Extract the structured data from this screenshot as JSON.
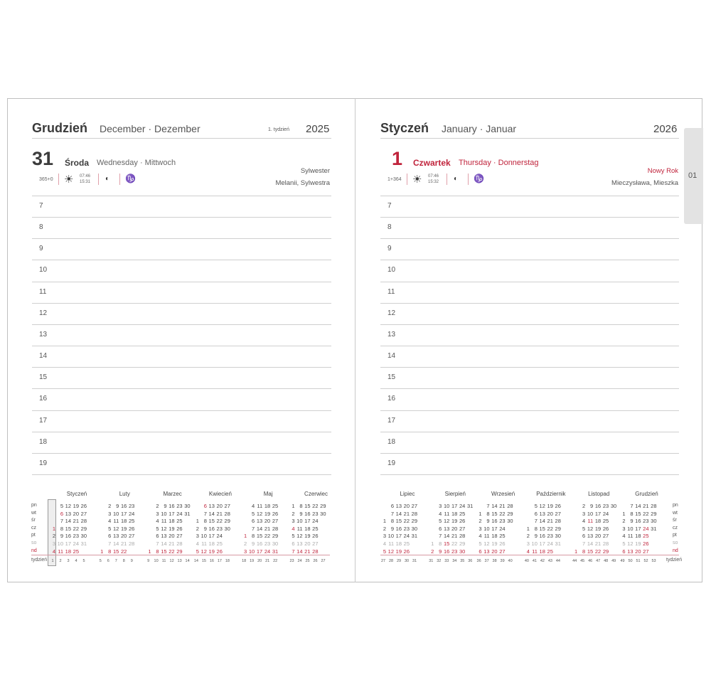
{
  "left": {
    "month": "Grudzień",
    "month_sub": "December · Dezember",
    "week": "1. tydzień",
    "year": "2025",
    "day": "31",
    "day_name": "Środa",
    "day_sub": "Wednesday · Mittwoch",
    "day_count": "365+0",
    "sunrise": "07:46",
    "sunset": "15:31",
    "holiday": "Sylwester",
    "namedays": "Melanii, Sylwestra",
    "day_red": false
  },
  "right": {
    "month": "Styczeń",
    "month_sub": "January · Januar",
    "year": "2026",
    "day": "1",
    "day_name": "Czwartek",
    "day_sub": "Thursday · Donnerstag",
    "day_count": "1+364",
    "sunrise": "07:46",
    "sunset": "15:32",
    "holiday": "Nowy Rok",
    "namedays": "Mieczysława, Mieszka",
    "day_red": true
  },
  "tab_label": "01",
  "hours": [
    "7",
    "8",
    "9",
    "10",
    "11",
    "12",
    "13",
    "14",
    "15",
    "16",
    "17",
    "18",
    "19"
  ],
  "weekdays": [
    "pn",
    "wt",
    "śr",
    "cz",
    "pt",
    "so",
    "nd"
  ],
  "week_label": "tydzień",
  "icons": {
    "sun": "sun-icon",
    "moon": "moon-phase-icon",
    "zodiac": "capricorn-icon"
  },
  "colors": {
    "accent": "#c0243c",
    "text": "#3c3c3c",
    "saturday": "#aaaaaa"
  },
  "mini_left": [
    {
      "name": "Styczeń",
      "start": 3,
      "days": 31,
      "red": [
        1,
        6
      ],
      "weeks": [
        1,
        2,
        3,
        4,
        5
      ]
    },
    {
      "name": "Luty",
      "start": 6,
      "days": 28,
      "red": [],
      "weeks": [
        5,
        6,
        7,
        8,
        9
      ]
    },
    {
      "name": "Marzec",
      "start": 6,
      "days": 31,
      "red": [],
      "weeks": [
        9,
        10,
        11,
        12,
        13,
        14
      ]
    },
    {
      "name": "Kwiecień",
      "start": 2,
      "days": 30,
      "red": [
        6
      ],
      "weeks": [
        14,
        15,
        16,
        17,
        18
      ]
    },
    {
      "name": "Maj",
      "start": 4,
      "days": 31,
      "red": [
        1
      ],
      "weeks": [
        18,
        19,
        20,
        21,
        22
      ]
    },
    {
      "name": "Czerwiec",
      "start": 0,
      "days": 30,
      "red": [
        4
      ],
      "weeks": [
        23,
        24,
        25,
        26,
        27
      ]
    }
  ],
  "mini_right": [
    {
      "name": "Lipiec",
      "start": 2,
      "days": 31,
      "red": [],
      "weeks": [
        27,
        28,
        29,
        30,
        31
      ]
    },
    {
      "name": "Sierpień",
      "start": 5,
      "days": 31,
      "red": [
        15
      ],
      "weeks": [
        31,
        32,
        33,
        34,
        35,
        36
      ]
    },
    {
      "name": "Wrzesień",
      "start": 1,
      "days": 30,
      "red": [],
      "weeks": [
        36,
        37,
        38,
        39,
        40
      ]
    },
    {
      "name": "Październik",
      "start": 3,
      "days": 31,
      "red": [],
      "weeks": [
        40,
        41,
        42,
        43,
        44
      ]
    },
    {
      "name": "Listopad",
      "start": 6,
      "days": 30,
      "red": [
        11
      ],
      "weeks": [
        44,
        45,
        46,
        47,
        48,
        49
      ]
    },
    {
      "name": "Grudzień",
      "start": 1,
      "days": 31,
      "red": [
        24,
        25,
        26
      ],
      "weeks": [
        49,
        50,
        51,
        52,
        53
      ]
    }
  ]
}
